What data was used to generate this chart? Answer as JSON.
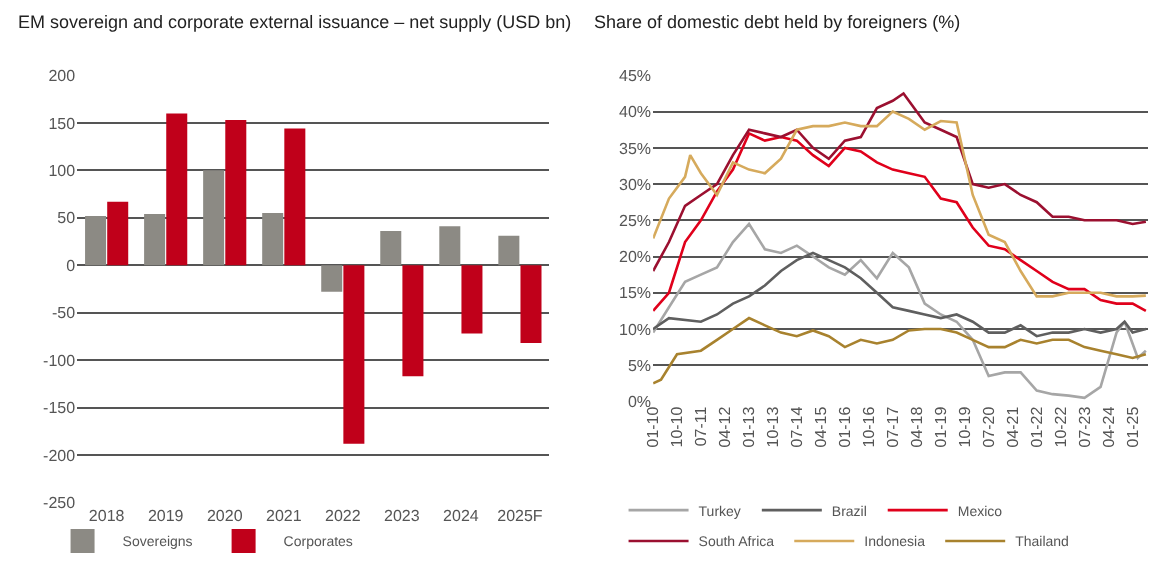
{
  "chart_data": [
    {
      "type": "bar",
      "title": "EM sovereign and corporate external issuance – net supply (USD bn)",
      "categories": [
        "2018",
        "2019",
        "2020",
        "2021",
        "2022",
        "2023",
        "2024",
        "2025F"
      ],
      "series": [
        {
          "name": "Sovereigns",
          "color": "#8c8a84",
          "values": [
            52,
            54,
            100,
            55,
            -28,
            36,
            41,
            31
          ]
        },
        {
          "name": "Corporates",
          "color": "#c0001a",
          "values": [
            67,
            160,
            153,
            144,
            -188,
            -117,
            -72,
            -82
          ]
        }
      ],
      "ylim": [
        -250,
        200
      ],
      "yticks": [
        -250,
        -200,
        -150,
        -100,
        -50,
        0,
        50,
        100,
        150,
        200
      ],
      "grid": "y",
      "legend": "bottom left"
    },
    {
      "type": "line",
      "title": "Share of domestic debt held by foreigners (%)",
      "series": [
        {
          "name": "Turkey",
          "color": "#a6a6a6",
          "x": [
            "2010-01",
            "2010-07",
            "2011-01",
            "2011-07",
            "2012-01",
            "2012-07",
            "2013-01",
            "2013-07",
            "2014-01",
            "2014-07",
            "2015-01",
            "2015-07",
            "2016-01",
            "2016-07",
            "2017-01",
            "2017-07",
            "2018-01",
            "2018-07",
            "2019-01",
            "2019-07",
            "2020-01",
            "2020-07",
            "2021-01",
            "2021-07",
            "2022-01",
            "2022-07",
            "2023-01",
            "2023-07",
            "2024-01",
            "2024-07",
            "2024-10",
            "2025-03",
            "2025-06"
          ],
          "values": [
            9.5,
            13,
            16.5,
            17.5,
            18.5,
            22,
            24.5,
            21,
            20.5,
            21.5,
            20,
            18.5,
            17.5,
            19.5,
            17,
            20.5,
            18.5,
            13.5,
            12,
            11,
            8.5,
            3.5,
            4,
            4,
            1.5,
            1,
            0.8,
            0.5,
            2,
            9.5,
            11,
            6,
            7
          ]
        },
        {
          "name": "Brazil",
          "color": "#5f5f5f",
          "x": [
            "2010-01",
            "2010-07",
            "2011-07",
            "2012-01",
            "2012-07",
            "2013-01",
            "2013-07",
            "2014-01",
            "2014-07",
            "2015-01",
            "2015-07",
            "2016-01",
            "2016-07",
            "2017-01",
            "2017-07",
            "2018-01",
            "2018-07",
            "2019-01",
            "2019-07",
            "2020-01",
            "2020-07",
            "2021-01",
            "2021-07",
            "2022-01",
            "2022-07",
            "2023-01",
            "2023-07",
            "2024-01",
            "2024-07",
            "2024-10",
            "2025-01",
            "2025-06"
          ],
          "values": [
            10,
            11.5,
            11,
            12,
            13.5,
            14.5,
            16,
            18,
            19.5,
            20.5,
            19.5,
            18.5,
            17,
            15,
            13,
            12.5,
            12,
            11.5,
            12,
            11,
            9.5,
            9.5,
            10.5,
            9,
            9.5,
            9.5,
            10,
            9.5,
            10,
            11,
            9.5,
            10
          ]
        },
        {
          "name": "Mexico",
          "color": "#e0001b",
          "x": [
            "2010-01",
            "2010-07",
            "2011-01",
            "2011-07",
            "2012-01",
            "2012-07",
            "2013-01",
            "2013-07",
            "2014-01",
            "2014-07",
            "2015-01",
            "2015-07",
            "2016-01",
            "2016-07",
            "2017-01",
            "2017-07",
            "2018-01",
            "2018-07",
            "2019-01",
            "2019-07",
            "2020-01",
            "2020-07",
            "2021-01",
            "2021-07",
            "2022-01",
            "2022-07",
            "2023-01",
            "2023-07",
            "2024-01",
            "2024-07",
            "2025-01",
            "2025-06"
          ],
          "values": [
            12.5,
            15,
            22,
            25,
            29,
            32,
            37,
            36,
            36.5,
            36,
            34,
            32.5,
            35,
            34.5,
            33,
            32,
            31.5,
            31,
            28,
            27.5,
            24,
            21.5,
            21,
            19.5,
            18,
            16.5,
            15.5,
            15.5,
            14,
            13.5,
            13.5,
            12.5
          ]
        },
        {
          "name": "South Africa",
          "color": "#9b1030",
          "x": [
            "2010-01",
            "2010-07",
            "2011-01",
            "2011-07",
            "2012-01",
            "2012-07",
            "2013-01",
            "2013-07",
            "2014-01",
            "2014-07",
            "2015-01",
            "2015-07",
            "2016-01",
            "2016-07",
            "2017-01",
            "2017-07",
            "2017-11",
            "2018-07",
            "2019-01",
            "2019-07",
            "2020-01",
            "2020-07",
            "2021-01",
            "2021-07",
            "2022-01",
            "2022-07",
            "2023-01",
            "2023-07",
            "2024-01",
            "2024-07",
            "2025-01",
            "2025-06"
          ],
          "values": [
            18,
            22,
            27,
            28.5,
            30,
            34,
            37.5,
            37,
            36.5,
            37.5,
            35,
            33.5,
            36,
            36.5,
            40.5,
            41.5,
            42.5,
            38.5,
            37.5,
            36.5,
            30,
            29.5,
            30,
            28.5,
            27.5,
            25.5,
            25.5,
            25,
            25,
            25,
            24.5,
            24.8
          ]
        },
        {
          "name": "Indonesia",
          "color": "#d6aa5c",
          "x": [
            "2010-01",
            "2010-07",
            "2011-01",
            "2011-03",
            "2011-07",
            "2012-01",
            "2012-07",
            "2013-01",
            "2013-07",
            "2014-01",
            "2014-07",
            "2015-01",
            "2015-07",
            "2016-01",
            "2016-07",
            "2017-01",
            "2017-07",
            "2018-01",
            "2018-07",
            "2019-01",
            "2019-07",
            "2020-01",
            "2020-07",
            "2021-01",
            "2021-07",
            "2022-01",
            "2022-07",
            "2023-01",
            "2023-07",
            "2024-01",
            "2024-07",
            "2025-01",
            "2025-06"
          ],
          "values": [
            22.5,
            28,
            31,
            34,
            31.5,
            28.5,
            33,
            32,
            31.5,
            33.5,
            37.5,
            38,
            38,
            38.5,
            38,
            38,
            40,
            39,
            37.5,
            38.7,
            38.5,
            28.5,
            23,
            22,
            18,
            14.5,
            14.5,
            15,
            15,
            15,
            14.5,
            14.5,
            14.6
          ]
        },
        {
          "name": "Thailand",
          "color": "#a8822e",
          "x": [
            "2010-01",
            "2010-04",
            "2010-10",
            "2011-07",
            "2012-01",
            "2012-07",
            "2013-01",
            "2013-07",
            "2014-01",
            "2014-07",
            "2015-01",
            "2015-07",
            "2016-01",
            "2016-07",
            "2017-01",
            "2017-07",
            "2018-01",
            "2018-07",
            "2019-01",
            "2019-07",
            "2020-01",
            "2020-07",
            "2021-01",
            "2021-07",
            "2022-01",
            "2022-07",
            "2023-01",
            "2023-07",
            "2024-01",
            "2024-07",
            "2025-01",
            "2025-06"
          ],
          "values": [
            2.5,
            3,
            6.5,
            7,
            8.5,
            10,
            11.5,
            10.5,
            9.5,
            9,
            9.8,
            9,
            7.5,
            8.5,
            8,
            8.5,
            9.8,
            10,
            10,
            9.5,
            8.5,
            7.5,
            7.5,
            8.5,
            8,
            8.5,
            8.5,
            7.5,
            7,
            6.5,
            6,
            6.5
          ]
        }
      ],
      "xlim": [
        "2010-01",
        "2025-07"
      ],
      "xticks": [
        {
          "value": "2010-01",
          "label": "01-10"
        },
        {
          "value": "2010-10",
          "label": "10-10"
        },
        {
          "value": "2011-07",
          "label": "07-11"
        },
        {
          "value": "2012-04",
          "label": "04-12"
        },
        {
          "value": "2013-01",
          "label": "01-13"
        },
        {
          "value": "2013-10",
          "label": "10-13"
        },
        {
          "value": "2014-07",
          "label": "07-14"
        },
        {
          "value": "2015-04",
          "label": "04-15"
        },
        {
          "value": "2016-01",
          "label": "01-16"
        },
        {
          "value": "2016-10",
          "label": "10-16"
        },
        {
          "value": "2017-07",
          "label": "07-17"
        },
        {
          "value": "2018-04",
          "label": "04-18"
        },
        {
          "value": "2019-01",
          "label": "01-19"
        },
        {
          "value": "2019-10",
          "label": "10-19"
        },
        {
          "value": "2020-07",
          "label": "07-20"
        },
        {
          "value": "2021-04",
          "label": "04-21"
        },
        {
          "value": "2022-01",
          "label": "01-22"
        },
        {
          "value": "2022-10",
          "label": "10-22"
        },
        {
          "value": "2023-07",
          "label": "07-23"
        },
        {
          "value": "2024-04",
          "label": "04-24"
        },
        {
          "value": "2025-01",
          "label": "01-25"
        }
      ],
      "ylim": [
        0,
        45
      ],
      "yticks": [
        {
          "value": 0,
          "label": "0%"
        },
        {
          "value": 5,
          "label": "5%"
        },
        {
          "value": 10,
          "label": "10%"
        },
        {
          "value": 15,
          "label": "15%"
        },
        {
          "value": 20,
          "label": "20%"
        },
        {
          "value": 25,
          "label": "25%"
        },
        {
          "value": 30,
          "label": "30%"
        },
        {
          "value": 35,
          "label": "35%"
        },
        {
          "value": 40,
          "label": "40%"
        },
        {
          "value": 45,
          "label": "45%"
        }
      ],
      "grid": "y",
      "legend": "bottom",
      "marker": "none",
      "line_style": "solid"
    }
  ]
}
